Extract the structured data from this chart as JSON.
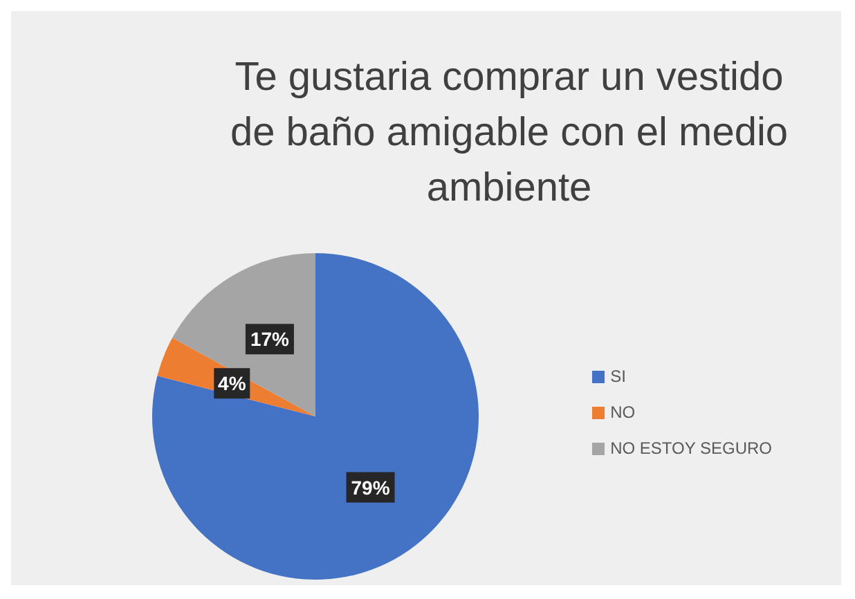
{
  "chart_data": {
    "type": "pie",
    "title": "Te gustaria comprar un vestido de baño amigable con el medio ambiente",
    "categories": [
      "SI",
      "NO",
      "NO ESTOY SEGURO"
    ],
    "values": [
      79,
      4,
      17
    ],
    "colors": [
      "#4472c4",
      "#ed7d31",
      "#a5a5a5"
    ],
    "value_labels": [
      "79%",
      "4%",
      "17%"
    ],
    "legend": "right"
  }
}
